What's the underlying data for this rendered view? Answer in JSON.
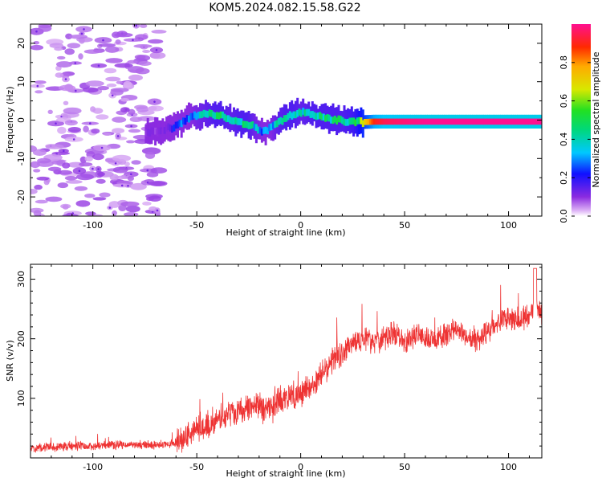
{
  "title": "KOM5.2024.082.15.58.G22",
  "chart_data": [
    {
      "type": "heatmap",
      "xlabel": "Height of straight line (km)",
      "ylabel": "Frequency (Hz)",
      "xlim": [
        -130,
        116
      ],
      "ylim": [
        -25,
        25
      ],
      "xticks": [
        -100,
        -50,
        0,
        50,
        100
      ],
      "yticks": [
        -20,
        -10,
        0,
        10,
        20
      ],
      "colorbar": {
        "label": "Normalized spectral amplitude",
        "range": [
          0,
          1
        ],
        "ticks": [
          "0.0",
          "0.2",
          "0.4",
          "0.6",
          "0.8"
        ]
      },
      "ridge": {
        "x": [
          -75,
          -68,
          -64,
          -62,
          -60,
          -58,
          -56,
          -53,
          -50,
          -46,
          -42,
          -38,
          -34,
          -30,
          -26,
          -22,
          -19,
          -17,
          -15,
          -12,
          -8,
          -4,
          0,
          5,
          10,
          15,
          20,
          25,
          30,
          35,
          40,
          50,
          60,
          70,
          80,
          90,
          100,
          110,
          116
        ],
        "freq": [
          -3,
          -3,
          -2,
          -2,
          -1,
          -1,
          0,
          1,
          1,
          1.5,
          1.5,
          1,
          0,
          -0.5,
          -1,
          -2,
          -3,
          -3,
          -2,
          -1,
          0.5,
          1.5,
          2,
          1.5,
          0.8,
          0.3,
          -0.2,
          -0.5,
          -0.5,
          -0.4,
          -0.4,
          -0.4,
          -0.4,
          -0.4,
          -0.4,
          -0.4,
          -0.4,
          -0.4,
          -0.4
        ],
        "amplitude": [
          0.1,
          0.1,
          0.15,
          0.2,
          0.3,
          0.3,
          0.25,
          0.3,
          0.35,
          0.4,
          0.45,
          0.45,
          0.4,
          0.45,
          0.45,
          0.35,
          0.3,
          0.3,
          0.3,
          0.4,
          0.45,
          0.45,
          0.4,
          0.45,
          0.45,
          0.45,
          0.45,
          0.5,
          0.7,
          0.9,
          0.95,
          0.98,
          1.0,
          1.0,
          1.0,
          1.0,
          1.0,
          1.0,
          1.0
        ]
      }
    },
    {
      "type": "line",
      "xlabel": "Height of straight line (km)",
      "ylabel": "SNR (v/v)",
      "xlim": [
        -130,
        116
      ],
      "ylim": [
        0,
        325
      ],
      "xticks": [
        -100,
        -50,
        0,
        50,
        100
      ],
      "yticks": [
        100,
        200,
        300
      ],
      "color": "#ee3333",
      "series": [
        {
          "x": [
            -130,
            -120,
            -110,
            -100,
            -90,
            -80,
            -70,
            -60,
            -55,
            -50,
            -45,
            -40,
            -35,
            -30,
            -25,
            -20,
            -15,
            -10,
            -5,
            0,
            5,
            10,
            15,
            20,
            25,
            30,
            35,
            40,
            45,
            50,
            55,
            60,
            65,
            70,
            75,
            80,
            85,
            90,
            95,
            100,
            105,
            110,
            113,
            116
          ],
          "y": [
            15,
            18,
            20,
            20,
            22,
            22,
            22,
            25,
            35,
            50,
            55,
            65,
            75,
            75,
            85,
            85,
            80,
            95,
            105,
            110,
            120,
            140,
            165,
            175,
            195,
            200,
            195,
            200,
            210,
            195,
            205,
            200,
            195,
            210,
            215,
            205,
            200,
            215,
            230,
            235,
            235,
            240,
            250,
            245
          ]
        }
      ]
    }
  ]
}
